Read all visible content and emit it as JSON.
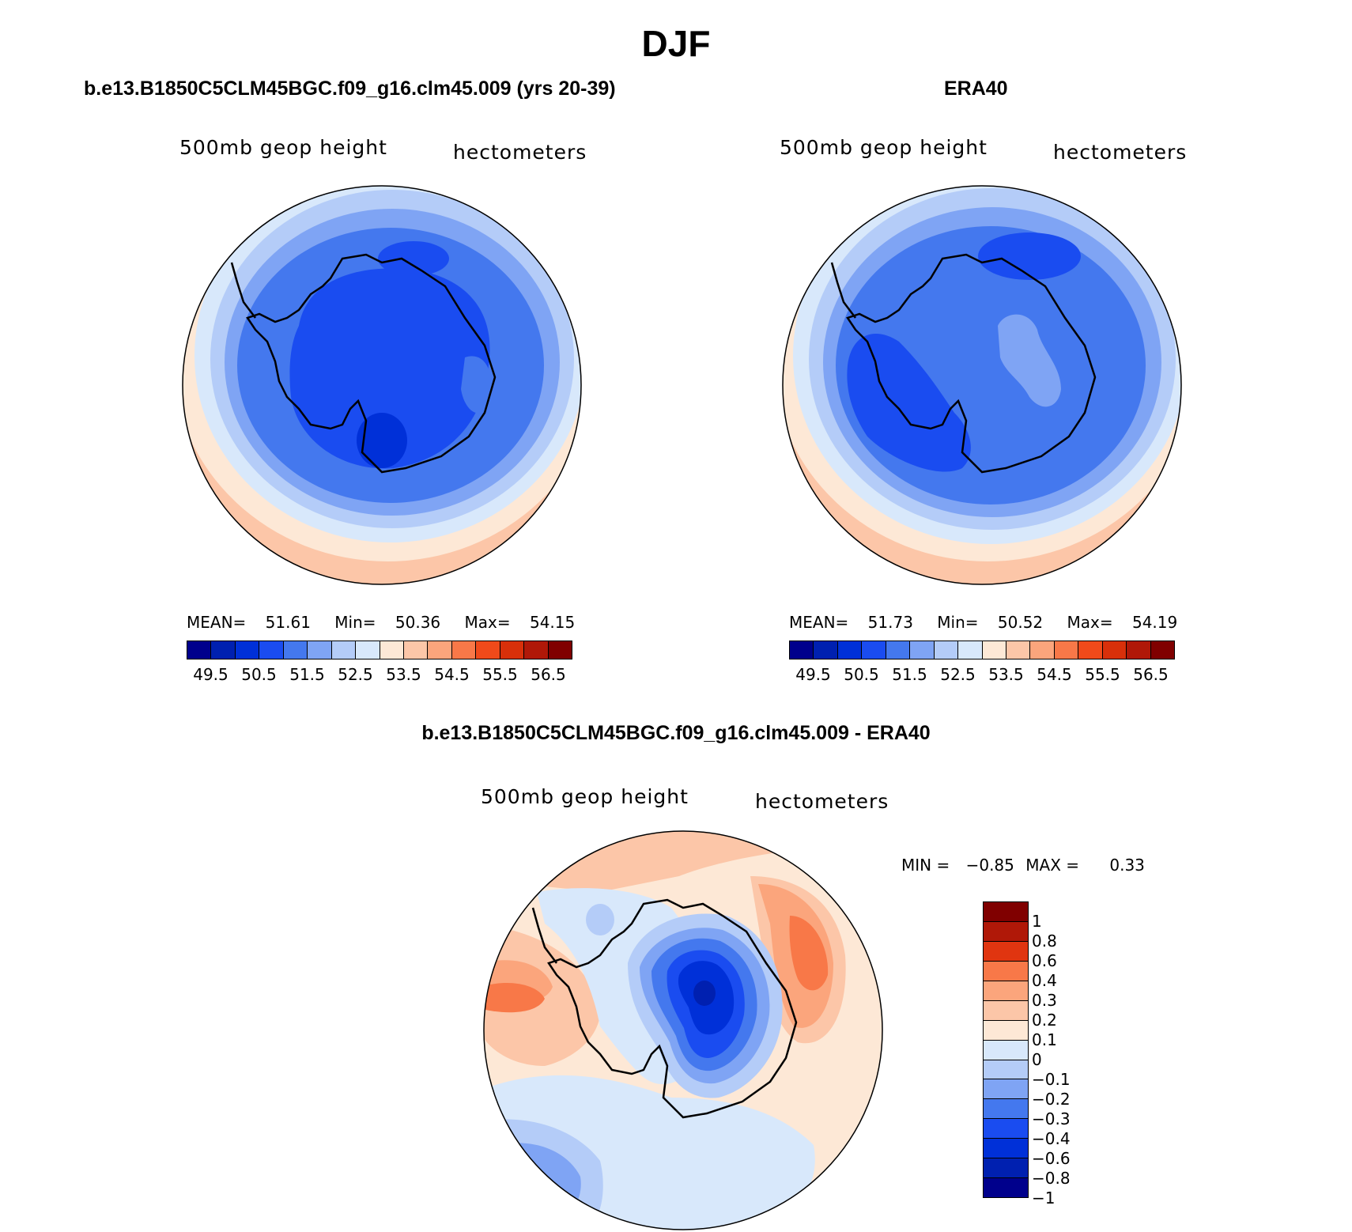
{
  "title": "DJF",
  "panels": [
    {
      "title": "b.e13.B1850C5CLM45BGC.f09_g16.clm45.009 (yrs 20-39)",
      "variable": "500mb geop height",
      "units": "hectometers",
      "stats": {
        "mean_label": "MEAN=",
        "mean": "51.61",
        "min_label": "Min=",
        "min": "50.36",
        "max_label": "Max=",
        "max": "54.15"
      }
    },
    {
      "title": "ERA40",
      "variable": "500mb geop height",
      "units": "hectometers",
      "stats": {
        "mean_label": "MEAN=",
        "mean": "51.73",
        "min_label": "Min=",
        "min": "50.52",
        "max_label": "Max=",
        "max": "54.19"
      }
    },
    {
      "title": "b.e13.B1850C5CLM45BGC.f09_g16.clm45.009 - ERA40",
      "variable": "500mb geop height",
      "units": "hectometers",
      "minmax": {
        "min_label": "MIN =",
        "min": "−0.85",
        "max_label": "MAX =",
        "max": "0.33"
      }
    }
  ],
  "colorbar_abs": {
    "colors": [
      "#00008c",
      "#0020b0",
      "#0030d8",
      "#1a4cf0",
      "#4478ee",
      "#7fa4f4",
      "#b4ccf8",
      "#d8e8fb",
      "#fde8d6",
      "#fcc6a8",
      "#fba57c",
      "#f87848",
      "#f04a1a",
      "#d8300a",
      "#b01808",
      "#800000"
    ],
    "ticks": [
      "49.5",
      "50.5",
      "51.5",
      "52.5",
      "53.5",
      "54.5",
      "55.5",
      "56.5"
    ]
  },
  "colorbar_diff": {
    "colors": [
      "#800000",
      "#b01808",
      "#e03510",
      "#f87848",
      "#fba57c",
      "#fcc6a8",
      "#fde8d6",
      "#d8e8fb",
      "#b4ccf8",
      "#7fa4f4",
      "#4478ee",
      "#1a4cf0",
      "#0030d8",
      "#0020b0",
      "#00008c"
    ],
    "ticks": [
      "1",
      "0.8",
      "0.6",
      "0.4",
      "0.3",
      "0.2",
      "0.1",
      "0",
      "−0.1",
      "−0.2",
      "−0.3",
      "−0.4",
      "−0.6",
      "−0.8",
      "−1"
    ]
  }
}
